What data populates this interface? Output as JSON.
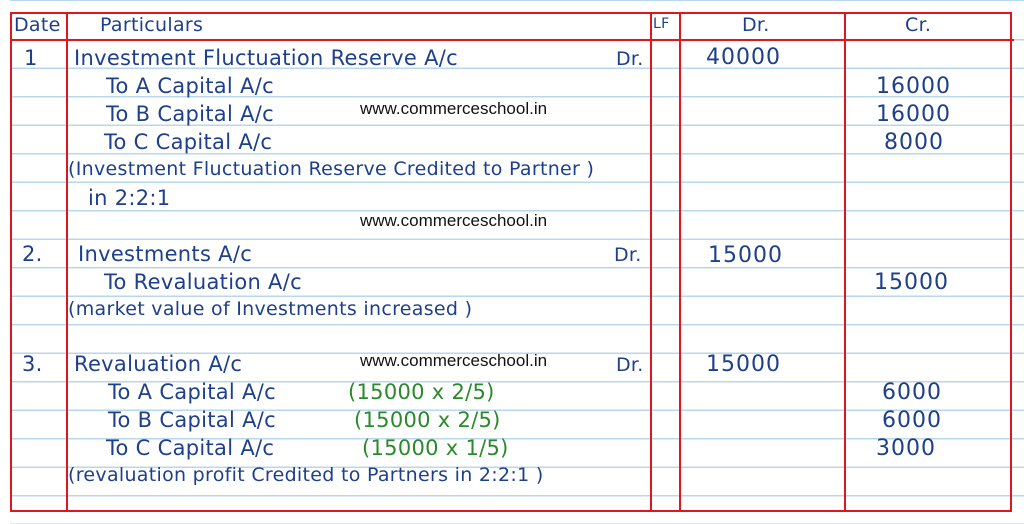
{
  "header": {
    "date": "Date",
    "particulars": "Particulars",
    "lf": "LF",
    "dr": "Dr.",
    "cr": "Cr."
  },
  "watermark": "www.commerceschool.in",
  "entries": [
    {
      "no": "1",
      "debit": "Investment Fluctuation Reserve A/c",
      "dr_mark": "Dr.",
      "dr_amount": "40000",
      "credits": [
        {
          "text": "To A Capital A/c",
          "amount": "16000"
        },
        {
          "text": "To B Capital A/c",
          "amount": "16000"
        },
        {
          "text": "To C Capital A/c",
          "amount": "8000"
        }
      ],
      "narration": [
        "(Investment Fluctuation Reserve Credited to Partner )",
        "in 2:2:1"
      ]
    },
    {
      "no": "2.",
      "debit": "Investments A/c",
      "dr_mark": "Dr.",
      "dr_amount": "15000",
      "credits": [
        {
          "text": "To Revaluation A/c",
          "amount": "15000"
        }
      ],
      "narration": [
        "(market value of Investments increased )"
      ]
    },
    {
      "no": "3.",
      "debit": "Revaluation A/c",
      "dr_mark": "Dr.",
      "dr_amount": "15000",
      "credits": [
        {
          "text": "To A Capital A/c",
          "calc": "(15000 x 2/5)",
          "amount": "6000"
        },
        {
          "text": "To B Capital A/c",
          "calc": "(15000 x 2/5)",
          "amount": "6000"
        },
        {
          "text": "To C Capital A/c",
          "calc": "(15000 x 1/5)",
          "amount": "3000"
        }
      ],
      "narration": [
        "(revaluation profit Credited to Partners in 2:2:1 )"
      ]
    }
  ],
  "colors": {
    "border": "#e0161e",
    "ink": "#1d3f8c",
    "calc_ink": "#2a8a2a",
    "rule": "#b9d7ea"
  }
}
